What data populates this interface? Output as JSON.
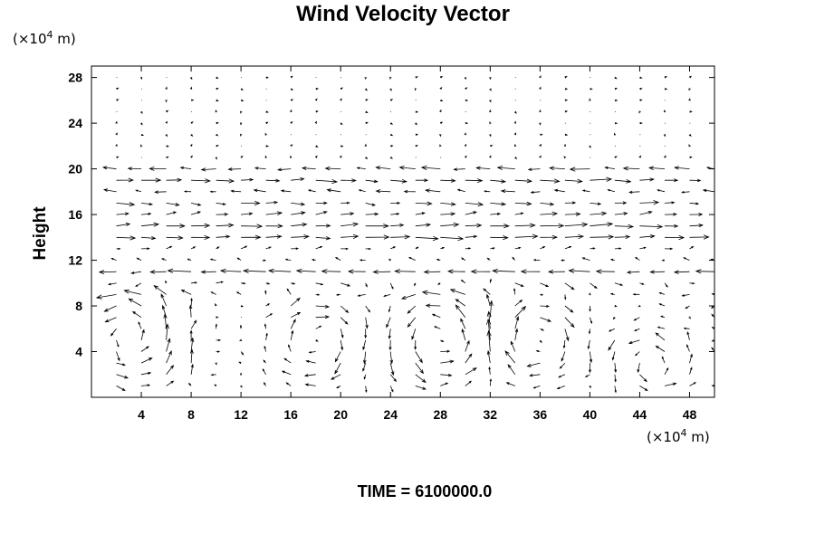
{
  "chart_data": {
    "type": "vector",
    "title": "Wind Velocity Vector",
    "ylabel": "Height",
    "y_unit": {
      "prefix": "(×10",
      "exp": "4",
      "suffix": " m)"
    },
    "x_unit": {
      "prefix": "(×10",
      "exp": "4",
      "suffix": " m)"
    },
    "xlim": [
      0,
      50
    ],
    "ylim": [
      0,
      29
    ],
    "x_ticks": [
      4,
      8,
      12,
      16,
      20,
      24,
      28,
      32,
      36,
      40,
      44,
      48
    ],
    "y_ticks": [
      4,
      8,
      12,
      16,
      20,
      24,
      28
    ],
    "grid_x": {
      "start": 2,
      "step": 2,
      "count": 25
    },
    "grid_y": {
      "start": 1,
      "step": 1,
      "count": 28
    },
    "bands": [
      {
        "y": 20,
        "u": -1.3,
        "v": 0.0
      },
      {
        "y": 19,
        "u": 1.5,
        "v": 0.0
      },
      {
        "y": 18,
        "u": -0.9,
        "v": 0.05
      },
      {
        "y": 17,
        "u": 1.3,
        "v": -0.05
      },
      {
        "y": 16,
        "u": 1.1,
        "v": 0.1
      },
      {
        "y": 15,
        "u": 1.6,
        "v": 0.05
      },
      {
        "y": 14,
        "u": 1.7,
        "v": 0.0
      },
      {
        "y": 13,
        "u": 0.5,
        "v": 0.1
      },
      {
        "y": 12,
        "u": -0.4,
        "v": 0.1
      },
      {
        "y": 11,
        "u": -1.6,
        "v": 0.0
      },
      {
        "y": 10,
        "u": 0.4,
        "v": -0.2
      },
      {
        "y": 9,
        "u": -0.5,
        "v": 0.1
      }
    ],
    "cells": [
      {
        "xc": 3,
        "yc": 5,
        "r": 4.5,
        "strength": 2.4,
        "sense": 1
      },
      {
        "xc": 9,
        "yc": 4,
        "r": 3.0,
        "strength": 0.8,
        "sense": -1
      },
      {
        "xc": 18,
        "yc": 5,
        "r": 3.5,
        "strength": 2.0,
        "sense": -1
      },
      {
        "xc": 28,
        "yc": 5,
        "r": 4.0,
        "strength": 2.2,
        "sense": 1
      },
      {
        "xc": 35.5,
        "yc": 5,
        "r": 3.5,
        "strength": 2.0,
        "sense": -1
      },
      {
        "xc": 45,
        "yc": 3,
        "r": 3.0,
        "strength": 1.8,
        "sense": 1
      }
    ],
    "max_length_units": 2.0,
    "upper_magnitude": 0.12
  },
  "time_label": "TIME = 6100000.0"
}
